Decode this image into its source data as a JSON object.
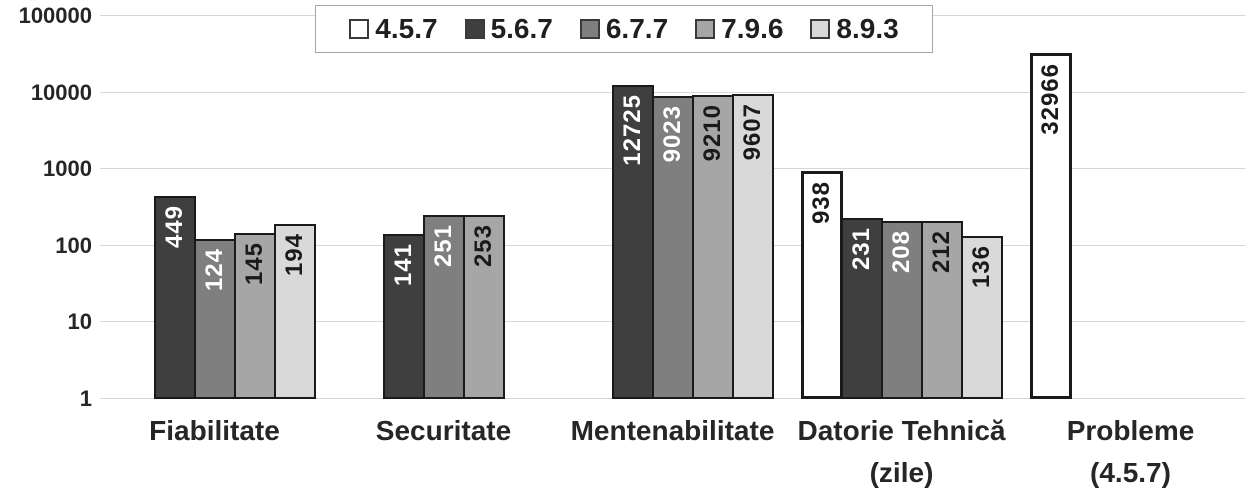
{
  "chart_data": {
    "type": "bar",
    "title": "",
    "xlabel": "",
    "ylabel": "",
    "y_scale": "log",
    "ylim": [
      1,
      100000
    ],
    "y_ticks": [
      "100000",
      "10000",
      "1000",
      "100",
      "10",
      "1"
    ],
    "grid": true,
    "legend_position": "top-center",
    "series": [
      {
        "name": "4.5.7",
        "color": "#ffffff",
        "border_color": "#1a1a1a",
        "border_width": 3,
        "label_color": "#1a1a1a"
      },
      {
        "name": "5.6.7",
        "color": "#3f3f3f",
        "border_color": "#1a1a1a",
        "border_width": 2,
        "label_color": "#ffffff"
      },
      {
        "name": "6.7.7",
        "color": "#7f7f7f",
        "border_color": "#1a1a1a",
        "border_width": 2,
        "label_color": "#ffffff"
      },
      {
        "name": "7.9.6",
        "color": "#a6a6a6",
        "border_color": "#1a1a1a",
        "border_width": 2,
        "label_color": "#1a1a1a"
      },
      {
        "name": "8.9.3",
        "color": "#d9d9d9",
        "border_color": "#1a1a1a",
        "border_width": 2,
        "label_color": "#1a1a1a"
      }
    ],
    "categories": [
      {
        "label": "Fiabilitate",
        "sublabel": "",
        "values": [
          null,
          449,
          124,
          145,
          194
        ]
      },
      {
        "label": "Securitate",
        "sublabel": "",
        "values": [
          null,
          141,
          251,
          253,
          null
        ]
      },
      {
        "label": "Mentenabilitate",
        "sublabel": "",
        "values": [
          null,
          12725,
          9023,
          9210,
          9607
        ]
      },
      {
        "label": "Datorie Tehnică",
        "sublabel": "(zile)",
        "values": [
          938,
          231,
          208,
          212,
          136
        ]
      },
      {
        "label": "Probleme",
        "sublabel": "(4.5.7)",
        "values": [
          32966,
          null,
          null,
          null,
          null
        ]
      }
    ]
  }
}
